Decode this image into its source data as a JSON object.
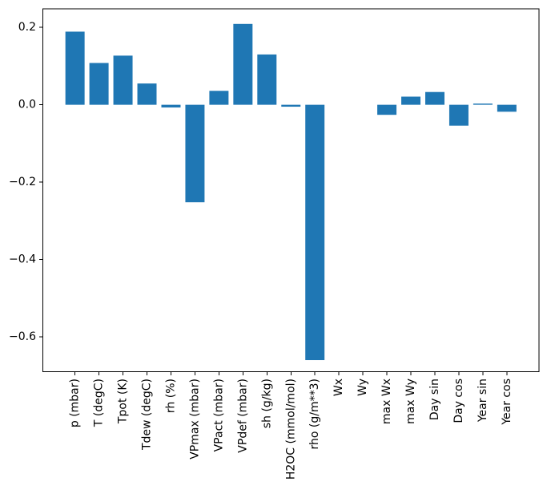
{
  "figure": {
    "background": "#ffffff",
    "bar_color": "#1f77b4",
    "axis_color": "#000000",
    "text_color": "#000000"
  },
  "chart_data": {
    "type": "bar",
    "title": "",
    "xlabel": "",
    "ylabel": "",
    "categories": [
      "p (mbar)",
      "T (degC)",
      "Tpot (K)",
      "Tdew (degC)",
      "rh (%)",
      "VPmax (mbar)",
      "VPact (mbar)",
      "VPdef (mbar)",
      "sh (g/kg)",
      "H2OC (mmol/mol)",
      "rho (g/m**3)",
      "Wx",
      "Wy",
      "max Wx",
      "max Wy",
      "Day sin",
      "Day cos",
      "Year sin",
      "Year cos"
    ],
    "values": [
      0.189,
      0.108,
      0.127,
      0.055,
      -0.007,
      -0.252,
      0.036,
      0.209,
      0.13,
      -0.005,
      -0.66,
      0.0,
      0.0,
      -0.026,
      0.021,
      0.033,
      -0.054,
      0.003,
      -0.018
    ],
    "yticks": [
      0.2,
      0.0,
      -0.2,
      -0.4,
      -0.6
    ],
    "ytick_labels": [
      "0.2",
      "0.0",
      "−0.2",
      "−0.4",
      "−0.6"
    ],
    "ylim": [
      -0.69,
      0.248
    ],
    "xlim": [
      -1.34,
      19.34
    ],
    "bar_width": 0.8,
    "x_tick_rotation": 90,
    "grid": false,
    "legend_position": "none"
  }
}
